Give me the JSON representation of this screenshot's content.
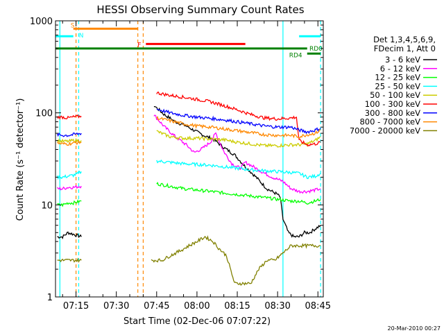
{
  "chart_data": {
    "type": "line",
    "title": "HESSI Observing Summary Count Rates",
    "xlabel": "Start Time (02-Dec-06 07:07:22)",
    "ylabel": "Count Rate (s⁻¹ detector⁻¹)",
    "y_scale": "log",
    "ylim": [
      1,
      1000
    ],
    "xlim": [
      "07:07:22",
      "08:47:00"
    ],
    "x_ticks": [
      "07:15",
      "07:30",
      "07:45",
      "08:00",
      "08:15",
      "08:30",
      "08:45"
    ],
    "y_ticks": [
      "1",
      "10",
      "100",
      "1000"
    ],
    "footer_date": "20-Mar-2010 00:27",
    "legend": {
      "header_lines": [
        "Det 1,3,4,5,6,9,",
        "FDecim 1, Att 0"
      ],
      "placement": "right"
    },
    "series": [
      {
        "name": "3 - 6 keV",
        "color": "#000000",
        "x": [
          "07:08",
          "07:10",
          "07:12",
          "07:14",
          "07:17",
          "07:40",
          "07:44",
          "07:48",
          "07:52",
          "07:56",
          "08:00",
          "08:03",
          "08:06",
          "08:10",
          "08:14",
          "08:18",
          "08:22",
          "08:26",
          "08:30",
          "08:31",
          "08:32",
          "08:34",
          "08:36",
          "08:38",
          "08:40",
          "08:42",
          "08:44",
          "08:46"
        ],
        "y": [
          4.5,
          4.5,
          5,
          4.8,
          4.5,
          null,
          120,
          95,
          80,
          72,
          62,
          56,
          52,
          42,
          35,
          26,
          20,
          15,
          13,
          12,
          7,
          5,
          4.5,
          4.5,
          5,
          5,
          5.5,
          6
        ]
      },
      {
        "name": "6 - 12 keV",
        "color": "#ff00ff",
        "x": [
          "07:08",
          "07:10",
          "07:12",
          "07:14",
          "07:17",
          "07:40",
          "07:44",
          "07:48",
          "07:52",
          "07:56",
          "07:59",
          "08:02",
          "08:05",
          "08:07",
          "08:10",
          "08:13",
          "08:16",
          "08:18",
          "08:20",
          "08:24",
          "08:28",
          "08:32",
          "08:35",
          "08:38",
          "08:41",
          "08:44",
          "08:46"
        ],
        "y": [
          15,
          15,
          15.5,
          15.5,
          16,
          null,
          95,
          70,
          55,
          45,
          37,
          41,
          48,
          60,
          38,
          28,
          25,
          29,
          27,
          23,
          20,
          18,
          15,
          14,
          14,
          14.5,
          15
        ]
      },
      {
        "name": "12 - 25 keV",
        "color": "#00ff00",
        "x": [
          "07:08",
          "07:10",
          "07:12",
          "07:14",
          "07:17",
          "07:40",
          "07:45",
          "07:50",
          "07:55",
          "08:00",
          "08:05",
          "08:10",
          "08:15",
          "08:20",
          "08:25",
          "08:30",
          "08:35",
          "08:38",
          "08:41",
          "08:44",
          "08:46"
        ],
        "y": [
          10,
          10,
          10.5,
          10.5,
          11,
          null,
          17,
          16,
          15,
          14.5,
          14,
          13.5,
          13,
          12.5,
          12,
          11.5,
          11,
          11,
          10.5,
          11,
          11.5
        ]
      },
      {
        "name": "25 - 50 keV",
        "color": "#00ffff",
        "x": [
          "07:08",
          "07:10",
          "07:12",
          "07:14",
          "07:16",
          "07:17",
          "07:40",
          "07:45",
          "07:50",
          "07:55",
          "08:00",
          "08:05",
          "08:10",
          "08:15",
          "08:20",
          "08:25",
          "08:30",
          "08:35",
          "08:38",
          "08:41",
          "08:44",
          "08:46"
        ],
        "y": [
          20,
          20,
          20.5,
          21,
          22,
          23,
          null,
          30,
          29,
          28,
          27.5,
          27,
          26,
          25,
          24,
          23.5,
          23,
          22.5,
          22,
          20,
          20.5,
          22
        ]
      },
      {
        "name": "50 - 100 keV",
        "color": "#cccc00",
        "x": [
          "07:08",
          "07:10",
          "07:12",
          "07:14",
          "07:17",
          "07:40",
          "07:45",
          "07:50",
          "07:55",
          "08:00",
          "08:05",
          "08:10",
          "08:15",
          "08:20",
          "08:25",
          "08:30",
          "08:35",
          "08:38",
          "08:41",
          "08:44",
          "08:46"
        ],
        "y": [
          50,
          49,
          49,
          50,
          50,
          null,
          63,
          55,
          53,
          53,
          52,
          51,
          48,
          46,
          44,
          44,
          45,
          45,
          46,
          50,
          55
        ]
      },
      {
        "name": "100 - 300 keV",
        "color": "#ff0000",
        "x": [
          "07:08",
          "07:10",
          "07:12",
          "07:14",
          "07:17",
          "07:40",
          "07:45",
          "07:50",
          "07:55",
          "08:00",
          "08:05",
          "08:10",
          "08:15",
          "08:20",
          "08:25",
          "08:30",
          "08:35",
          "08:37",
          "08:38",
          "08:41",
          "08:44",
          "08:46"
        ],
        "y": [
          90,
          90,
          88,
          90,
          92,
          null,
          165,
          155,
          148,
          140,
          132,
          120,
          108,
          96,
          88,
          86,
          88,
          90,
          50,
          45,
          46,
          48
        ]
      },
      {
        "name": "300 - 800 keV",
        "color": "#0000ff",
        "x": [
          "07:08",
          "07:10",
          "07:12",
          "07:14",
          "07:17",
          "07:40",
          "07:45",
          "07:50",
          "07:55",
          "08:00",
          "08:05",
          "08:10",
          "08:15",
          "08:20",
          "08:25",
          "08:30",
          "08:35",
          "08:38",
          "08:41",
          "08:44",
          "08:46"
        ],
        "y": [
          58,
          57,
          57,
          58,
          60,
          null,
          110,
          100,
          94,
          90,
          87,
          84,
          80,
          76,
          72,
          70,
          70,
          65,
          62,
          65,
          68
        ]
      },
      {
        "name": "800 - 7000 keV",
        "color": "#ff8800",
        "x": [
          "07:08",
          "07:10",
          "07:12",
          "07:14",
          "07:17",
          "07:40",
          "07:45",
          "07:50",
          "07:55",
          "08:00",
          "08:05",
          "08:10",
          "08:15",
          "08:20",
          "08:25",
          "08:30",
          "08:35",
          "08:38",
          "08:41",
          "08:44",
          "08:46"
        ],
        "y": [
          47,
          46,
          46,
          47,
          48,
          null,
          88,
          82,
          76,
          72,
          70,
          67,
          64,
          61,
          58,
          57,
          57,
          55,
          58,
          60,
          65
        ]
      },
      {
        "name": "7000 - 20000 keV",
        "color": "#808000",
        "x": [
          "07:08",
          "07:10",
          "07:12",
          "07:14",
          "07:17",
          "07:40",
          "07:43",
          "07:47",
          "07:50",
          "07:54",
          "07:57",
          "08:00",
          "08:03",
          "08:06",
          "08:08",
          "08:11",
          "08:14",
          "08:17",
          "08:20",
          "08:23",
          "08:26",
          "08:29",
          "08:32",
          "08:35",
          "08:38",
          "08:41",
          "08:44",
          "08:46"
        ],
        "y": [
          2.5,
          2.5,
          2.5,
          2.5,
          2.5,
          null,
          2.5,
          2.5,
          2.8,
          3.2,
          3.6,
          4,
          4.5,
          4,
          3.4,
          2.8,
          1.4,
          1.4,
          1.4,
          2,
          2.5,
          2.5,
          3,
          3.6,
          3.6,
          3.6,
          3.6,
          3.6
        ]
      }
    ],
    "flag_bars": [
      {
        "label": "S",
        "color": "#ff8800",
        "start": "07:14",
        "end": "07:38",
        "y": 820
      },
      {
        "label": "N",
        "color": "#00ffff",
        "start": "07:07:22",
        "end": "07:14",
        "y": 680
      },
      {
        "label": "F",
        "color": "#ff0000",
        "start": "07:41",
        "end": "08:18",
        "y": 560
      },
      {
        "label": "N",
        "color": "#00ffff",
        "start": "08:38",
        "end": "08:46",
        "y": 680
      },
      {
        "label": "RD0",
        "color": "#008000",
        "start": "07:07:22",
        "end": "08:41",
        "y": 500
      },
      {
        "label": "RD4",
        "color": "#008000",
        "start": "08:41",
        "end": "08:46",
        "y": 440
      }
    ],
    "vertical_markers": [
      {
        "time": "07:09",
        "color": "#00ffff",
        "dashed": false
      },
      {
        "time": "07:15",
        "color": "#ff8800",
        "dashed": true
      },
      {
        "time": "07:16",
        "color": "#00ffff",
        "dashed": true
      },
      {
        "time": "07:38",
        "color": "#ff8800",
        "dashed": true
      },
      {
        "time": "07:40",
        "color": "#ff8800",
        "dashed": true
      },
      {
        "time": "08:32",
        "color": "#00ffff",
        "dashed": false
      },
      {
        "time": "08:46",
        "color": "#00ffff",
        "dashed": true
      }
    ]
  }
}
